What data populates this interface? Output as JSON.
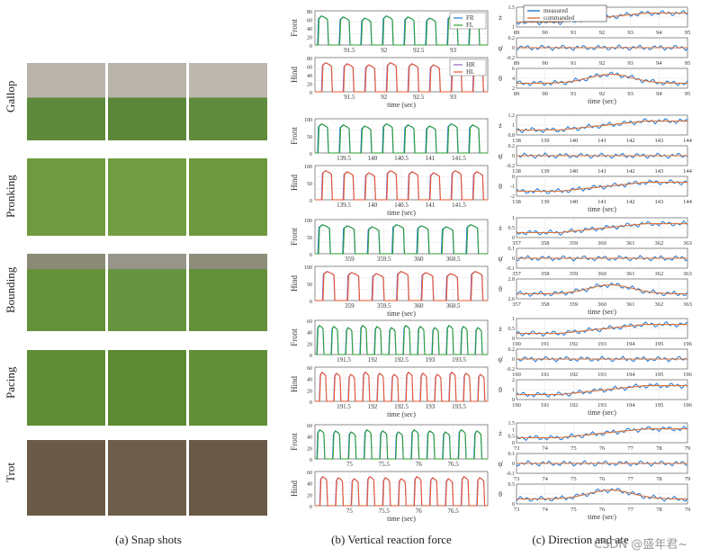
{
  "gaits": [
    "Gallop",
    "Pronking",
    "Bounding",
    "Pacing",
    "Trot"
  ],
  "captions": {
    "a": "(a) Snap shots",
    "b": "(b) Vertical reaction force",
    "c": "(c) Direction and  ate ",
    "watermark": "CSDN @盛年君~"
  },
  "colors": {
    "FR": "#1f77d4",
    "FL": "#2ca02c",
    "HR": "#9467bd",
    "HL": "#e8562a",
    "measured": "#1f77d4",
    "commanded": "#d9733a",
    "grid": "#e6e6e6"
  },
  "force": {
    "legend_front": [
      "FR",
      "FL"
    ],
    "legend_hind": [
      "HR",
      "HL"
    ],
    "xlabel": "time (sec)",
    "ylabel_front": "Front",
    "ylabel_hind": "Hind",
    "rows": [
      {
        "gait": "Gallop",
        "xticks": [
          "91.5",
          "92",
          "92.5",
          "93"
        ],
        "yticks": [
          "0",
          "20",
          "40",
          "60",
          "80"
        ],
        "n": 8
      },
      {
        "gait": "Pronking",
        "xticks": [
          "139.5",
          "140",
          "140.5",
          "141",
          "141.5"
        ],
        "yticks": [
          "0",
          "50",
          "100"
        ],
        "n": 8
      },
      {
        "gait": "Bounding",
        "xticks": [
          "359",
          "359.5",
          "360",
          "360.5"
        ],
        "yticks": [
          "0",
          "50",
          "100"
        ],
        "n": 7
      },
      {
        "gait": "Pacing",
        "xticks": [
          "191.5",
          "192",
          "192.5",
          "193",
          "193.5"
        ],
        "yticks": [
          "0",
          "20",
          "40",
          "60"
        ],
        "n": 12
      },
      {
        "gait": "Trot",
        "xticks": [
          "75",
          "75.5",
          "76",
          "76.5"
        ],
        "yticks": [
          "0",
          "20",
          "40",
          "60"
        ],
        "n": 11
      }
    ]
  },
  "state": {
    "legend": [
      "measured",
      "commanded"
    ],
    "xlabel": "time (sec)",
    "rows": [
      {
        "gait": "Gallop",
        "xticks": [
          "89",
          "90",
          "91",
          "92",
          "93",
          "94",
          "95"
        ],
        "labels": [
          "ż",
          "ψ̇",
          "θ"
        ],
        "yt": [
          [
            "1",
            "1.5"
          ],
          [
            "-0.2",
            "0",
            "0.2"
          ],
          [
            "2",
            "4",
            "6"
          ]
        ]
      },
      {
        "gait": "Pronking",
        "xticks": [
          "138",
          "139",
          "140",
          "141",
          "142",
          "143",
          "144"
        ],
        "labels": [
          "ż",
          "ψ̇",
          "θ"
        ],
        "yt": [
          [
            "0.8",
            "1",
            "1.2"
          ],
          [
            "-0.2",
            "0",
            "0.2"
          ],
          [
            "-2",
            "-1",
            "0"
          ]
        ]
      },
      {
        "gait": "Bounding",
        "xticks": [
          "357",
          "358",
          "359",
          "360",
          "361",
          "362",
          "363"
        ],
        "labels": [
          "ż",
          "ψ̇",
          "θ"
        ],
        "yt": [
          [
            "0",
            "0.5",
            "1"
          ],
          [
            "-0.1",
            "0",
            "0.1"
          ],
          [
            "2.6",
            "2.8"
          ]
        ]
      },
      {
        "gait": "Pacing",
        "xticks": [
          "190",
          "191",
          "192",
          "193",
          "194",
          "195",
          "196"
        ],
        "labels": [
          "ż",
          "ψ̇",
          "θ"
        ],
        "yt": [
          [
            "0",
            "0.5",
            "1"
          ],
          [
            "-0.2",
            "0",
            "0.2"
          ],
          [
            "0",
            "1",
            "2"
          ]
        ]
      },
      {
        "gait": "Trot",
        "xticks": [
          "73",
          "74",
          "75",
          "76",
          "77",
          "78",
          "79"
        ],
        "labels": [
          "ż",
          "ψ̇",
          "θ"
        ],
        "yt": [
          [
            "0",
            "0.5",
            "1",
            "1.5"
          ],
          [
            "-0.1",
            "0",
            "0.1"
          ],
          [
            "0",
            "0.5"
          ]
        ]
      }
    ]
  }
}
